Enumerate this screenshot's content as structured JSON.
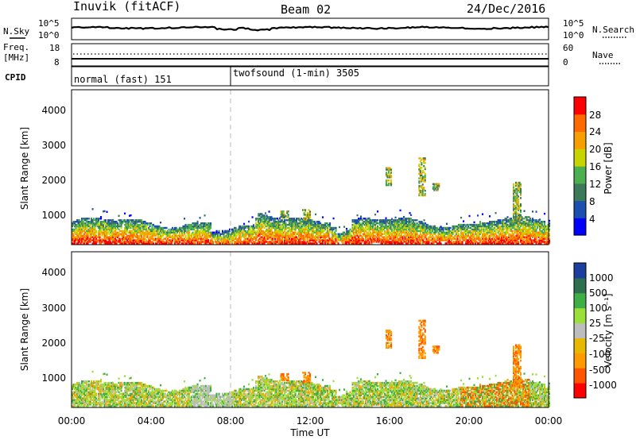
{
  "header": {
    "station": "Inuvik (fitACF)",
    "beam": "Beam 02",
    "date": "24/Dec/2016"
  },
  "noise_panel": {
    "left_label": "N.Sky",
    "left_ticks": [
      "10^5",
      "10^0"
    ],
    "right_label": "N.Search",
    "right_ticks": [
      "10^5",
      "10^0"
    ]
  },
  "freq_panel": {
    "left_label_line1": "Freq.",
    "left_label_line2": "[MHz]",
    "left_ticks": [
      "18",
      "8"
    ],
    "right_label": "Nave",
    "right_ticks": [
      "60",
      "0"
    ]
  },
  "cpid_panel": {
    "label": "CPID",
    "modes": [
      "normal (fast) 151",
      "twofsound (1-min) 3505"
    ]
  },
  "colors": {
    "power_scale": [
      "#0000ff",
      "#1d4fb0",
      "#3d7a5a",
      "#4caf50",
      "#c8d400",
      "#f5a000",
      "#ff6a00",
      "#ff0000"
    ],
    "velocity_scale": [
      "#ff0000",
      "#ff5500",
      "#ff9a00",
      "#e8b800",
      "#bdbdbd",
      "#9adf3a",
      "#3fae46",
      "#2e6f4f",
      "#1c3f9f"
    ]
  },
  "chart_data": [
    {
      "type": "heatmap",
      "title": "",
      "xlabel": "",
      "ylabel": "Slant Range [km]",
      "yticks": [
        "1000",
        "2000",
        "3000",
        "4000"
      ],
      "ylim": [
        180,
        4700
      ],
      "xlim_hours": [
        0,
        24
      ],
      "colorbar_label": "Power [dB]",
      "colorbar_ticks": [
        "4",
        "8",
        "12",
        "16",
        "20",
        "24",
        "28"
      ],
      "colorbar_range": [
        0,
        30
      ],
      "description_regions": [
        {
          "hours": [
            0,
            24
          ],
          "range_km": [
            180,
            1100
          ],
          "dominant": "strong near-range echoes"
        },
        {
          "hours": [
            15.8,
            16.0
          ],
          "range_km": [
            1900,
            2400
          ]
        },
        {
          "hours": [
            17.5,
            17.8
          ],
          "range_km": [
            1600,
            2700
          ]
        },
        {
          "hours": [
            18.2,
            18.5
          ],
          "range_km": [
            1750,
            1950
          ]
        },
        {
          "hours": [
            22.3,
            22.6
          ],
          "range_km": [
            800,
            2000
          ]
        }
      ]
    },
    {
      "type": "heatmap",
      "title": "",
      "xlabel": "Time UT",
      "ylabel": "Slant Range [km]",
      "xticks": [
        "00:00",
        "04:00",
        "08:00",
        "12:00",
        "16:00",
        "20:00",
        "00:00"
      ],
      "yticks": [
        "1000",
        "2000",
        "3000",
        "4000"
      ],
      "ylim": [
        180,
        4700
      ],
      "xlim_hours": [
        0,
        24
      ],
      "colorbar_label": "Velocity [m s⁻¹]",
      "colorbar_ticks": [
        "1000",
        "500",
        "100",
        "25",
        "-25",
        "-100",
        "-500",
        "-1000"
      ],
      "colorbar_range": [
        -1000,
        1000
      ]
    }
  ]
}
